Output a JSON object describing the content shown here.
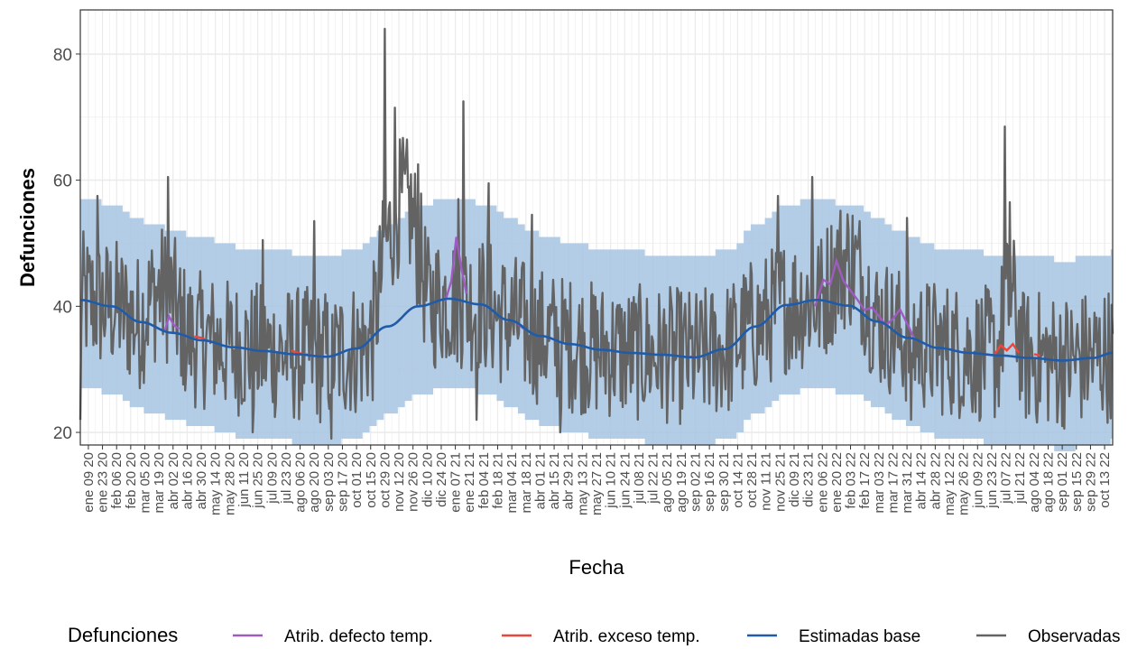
{
  "chart_data": {
    "type": "line",
    "xlabel": "Fecha",
    "ylabel": "Defunciones",
    "ylim": [
      18,
      87
    ],
    "y_ticks": [
      20,
      40,
      60,
      80
    ],
    "x_range": [
      "2020-01-01",
      "2022-10-21"
    ],
    "x_tick_labels": [
      "ene 09 20",
      "ene 23 20",
      "feb 06 20",
      "feb 20 20",
      "mar 05 20",
      "mar 19 20",
      "abr 02 20",
      "abr 16 20",
      "abr 30 20",
      "may 14 20",
      "may 28 20",
      "jun 11 20",
      "jun 25 20",
      "jul 09 20",
      "jul 23 20",
      "ago 06 20",
      "ago 20 20",
      "sep 03 20",
      "sep 17 20",
      "oct 01 20",
      "oct 15 20",
      "oct 29 20",
      "nov 12 20",
      "nov 26 20",
      "dic 10 20",
      "dic 24 20",
      "ene 07 21",
      "ene 21 21",
      "feb 04 21",
      "feb 18 21",
      "mar 04 21",
      "mar 18 21",
      "abr 01 21",
      "abr 15 21",
      "abr 29 21",
      "may 13 21",
      "may 27 21",
      "jun 10 21",
      "jun 24 21",
      "jul 08 21",
      "jul 22 21",
      "ago 05 21",
      "ago 19 21",
      "sep 02 21",
      "sep 16 21",
      "sep 30 21",
      "oct 14 21",
      "oct 28 21",
      "nov 11 21",
      "nov 25 21",
      "dic 09 21",
      "dic 23 21",
      "ene 06 22",
      "ene 20 22",
      "feb 03 22",
      "feb 17 22",
      "mar 03 22",
      "mar 17 22",
      "mar 31 22",
      "abr 14 22",
      "abr 28 22",
      "may 12 22",
      "may 26 22",
      "jun 09 22",
      "jun 23 22",
      "jul 07 22",
      "jul 21 22",
      "ago 04 22",
      "ago 18 22",
      "sep 01 22",
      "sep 15 22",
      "sep 29 22",
      "oct 13 22"
    ],
    "grid": true,
    "legend": {
      "title": "Defunciones",
      "placement": "bottom",
      "entries": [
        {
          "label": "Atrib. defecto temp.",
          "color": "#9f5cc0"
        },
        {
          "label": "Atrib. exceso temp.",
          "color": "#e8473c"
        },
        {
          "label": "Estimadas base",
          "color": "#1f5ba8"
        },
        {
          "label": "Observadas",
          "color": "#636363"
        }
      ]
    },
    "band_color": "#a7c4e2",
    "series": [
      {
        "name": "Estimadas base",
        "color": "#1f5ba8",
        "x": [
          "2020-01-01",
          "2020-02-01",
          "2020-03-01",
          "2020-04-01",
          "2020-05-01",
          "2020-06-01",
          "2020-07-01",
          "2020-08-01",
          "2020-09-01",
          "2020-10-01",
          "2020-11-01",
          "2020-12-01",
          "2021-01-01",
          "2021-02-01",
          "2021-03-01",
          "2021-04-01",
          "2021-05-01",
          "2021-06-01",
          "2021-07-01",
          "2021-08-01",
          "2021-09-01",
          "2021-10-01",
          "2021-11-01",
          "2021-12-01",
          "2022-01-01",
          "2022-02-01",
          "2022-03-01",
          "2022-04-01",
          "2022-05-01",
          "2022-06-01",
          "2022-07-01",
          "2022-08-01",
          "2022-09-01",
          "2022-10-01",
          "2022-10-21"
        ],
        "values": [
          41.0,
          40.0,
          37.5,
          35.8,
          34.6,
          33.5,
          32.9,
          32.4,
          32.0,
          33.3,
          36.8,
          40.0,
          41.2,
          40.3,
          37.8,
          35.3,
          34.0,
          33.1,
          32.6,
          32.3,
          31.9,
          33.2,
          36.8,
          40.2,
          41.0,
          40.1,
          37.6,
          35.0,
          33.4,
          32.6,
          32.2,
          31.8,
          31.4,
          31.8,
          32.6
        ]
      },
      {
        "name": "Atrib. defecto temp.",
        "color": "#9f5cc0",
        "x": [
          "2020-03-25",
          "2020-03-29",
          "2020-04-03",
          "2020-04-08",
          "2020-12-28",
          "2021-01-03",
          "2021-01-08",
          "2021-01-13",
          "2021-01-18",
          "2021-03-10",
          "2021-03-16",
          "2021-12-30",
          "2022-01-07",
          "2022-01-14",
          "2022-01-20",
          "2022-01-27",
          "2022-02-03",
          "2022-02-10",
          "2022-02-17",
          "2022-02-24",
          "2022-03-03",
          "2022-03-10",
          "2022-03-17",
          "2022-03-24",
          "2022-04-01",
          "2022-04-08"
        ],
        "values": [
          36.2,
          38.4,
          37.0,
          36.4,
          40.8,
          44.0,
          51.0,
          46.0,
          42.0,
          37.2,
          36.4,
          40.0,
          44.2,
          43.5,
          47.2,
          44.0,
          42.5,
          41.0,
          39.4,
          39.8,
          38.5,
          37.0,
          38.0,
          39.5,
          37.0,
          34.6
        ]
      },
      {
        "name": "Atrib. exceso temp.",
        "color": "#e8473c",
        "x": [
          "2020-04-23",
          "2020-04-30",
          "2020-05-07",
          "2020-07-28",
          "2020-08-04",
          "2020-08-11",
          "2020-08-18",
          "2021-08-28",
          "2021-09-03",
          "2022-06-26",
          "2022-07-02",
          "2022-07-08",
          "2022-07-14",
          "2022-07-20",
          "2022-08-04",
          "2022-08-10"
        ],
        "values": [
          35.2,
          35.0,
          34.5,
          33.0,
          32.6,
          32.4,
          32.2,
          32.0,
          31.9,
          32.4,
          33.8,
          33.0,
          34.0,
          32.6,
          32.4,
          32.2
        ]
      },
      {
        "name": "Observadas",
        "color": "#636363",
        "keypoints": [
          [
            "2020-01-01",
            22
          ],
          [
            "2020-01-18",
            57.5
          ],
          [
            "2020-03-28",
            60.5
          ],
          [
            "2020-04-10",
            29
          ],
          [
            "2020-06-20",
            20
          ],
          [
            "2020-06-30",
            50.5
          ],
          [
            "2020-08-20",
            53.5
          ],
          [
            "2020-09-06",
            19
          ],
          [
            "2020-10-29",
            84
          ],
          [
            "2020-11-08",
            71.5
          ],
          [
            "2020-12-01",
            62.5
          ],
          [
            "2021-01-10",
            57
          ],
          [
            "2021-01-15",
            72.5
          ],
          [
            "2021-01-28",
            22
          ],
          [
            "2021-02-09",
            59.5
          ],
          [
            "2021-03-24",
            54.5
          ],
          [
            "2021-04-21",
            20
          ],
          [
            "2021-11-23",
            57.5
          ],
          [
            "2021-12-27",
            60.5
          ],
          [
            "2022-03-31",
            54
          ],
          [
            "2022-04-04",
            22
          ],
          [
            "2022-07-06",
            68.5
          ],
          [
            "2022-07-11",
            56.5
          ],
          [
            "2022-10-18",
            26.5
          ]
        ]
      }
    ]
  }
}
